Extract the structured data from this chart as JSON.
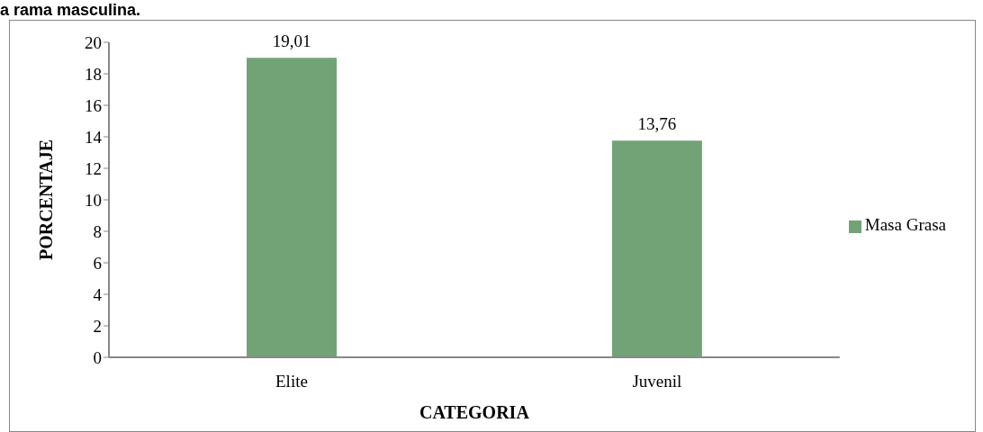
{
  "chart_data": {
    "type": "bar",
    "title": "a rama masculina.",
    "xlabel": "CATEGORIA",
    "ylabel": "PORCENTAJE",
    "categories": [
      "Elite",
      "Juvenil"
    ],
    "series": [
      {
        "name": "Masa Grasa",
        "color": "#72a376",
        "values": [
          19.01,
          13.76
        ]
      }
    ],
    "value_labels": [
      "19,01",
      "13,76"
    ],
    "ylim": [
      0,
      20
    ],
    "yticks": [
      0,
      2,
      4,
      6,
      8,
      10,
      12,
      14,
      16,
      18,
      20
    ],
    "grid": false,
    "legend": "right"
  }
}
